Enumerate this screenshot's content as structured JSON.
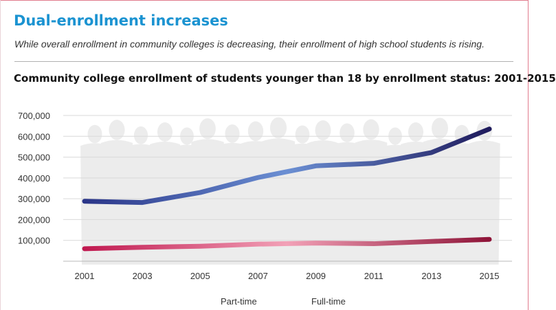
{
  "header": {
    "title": "Dual-enrollment increases",
    "subtitle": "While overall enrollment in community colleges is decreasing, their enrollment of high school students is rising."
  },
  "chart_data": {
    "type": "line",
    "title": "Community college enrollment of students younger than 18 by enrollment status: 2001-2015",
    "xlabel": "",
    "ylabel": "",
    "x": [
      "2001",
      "2003",
      "2005",
      "2007",
      "2009",
      "2011",
      "2013",
      "2015"
    ],
    "ylim": [
      0,
      700000
    ],
    "yticks": [
      "100,000",
      "200,000",
      "300,000",
      "400,000",
      "500,000",
      "600,000",
      "700,000"
    ],
    "grid": true,
    "legend_position": "bottom",
    "series": [
      {
        "name": "Part-time",
        "values": [
          288000,
          282000,
          330000,
          402000,
          458000,
          470000,
          522000,
          635000
        ],
        "colors": [
          "#2a3588",
          "#6b8fd3",
          "#1e1a5c"
        ]
      },
      {
        "name": "Full-time",
        "values": [
          60000,
          67000,
          72000,
          82000,
          87000,
          84000,
          95000,
          105000
        ],
        "colors": [
          "#c0184f",
          "#f2a1b7",
          "#8e1438"
        ]
      }
    ]
  }
}
